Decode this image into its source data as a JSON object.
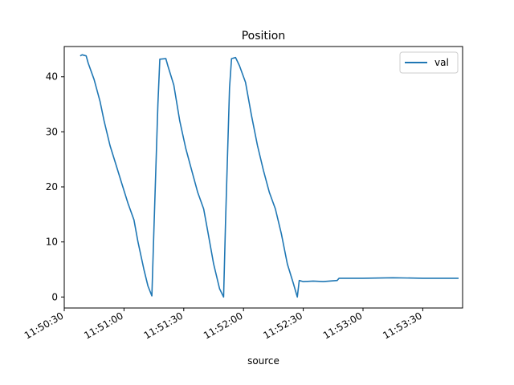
{
  "chart_data": {
    "type": "line",
    "title": "Position",
    "xlabel": "source",
    "ylabel": "",
    "x_type": "time",
    "xlim": [
      "11:50:30",
      "11:53:50"
    ],
    "ylim": [
      -2,
      45.5
    ],
    "x_ticks": [
      "11:50:30",
      "11:51:00",
      "11:51:30",
      "11:52:00",
      "11:52:30",
      "11:53:00",
      "11:53:30"
    ],
    "y_ticks": [
      0,
      10,
      20,
      30,
      40
    ],
    "grid": false,
    "legend_position": "top-right",
    "series": [
      {
        "name": "val",
        "color": "#1f77b4",
        "points": [
          [
            "11:50:38",
            43.8
          ],
          [
            "11:50:39",
            44.0
          ],
          [
            "11:50:41",
            43.8
          ],
          [
            "11:50:42",
            42.5
          ],
          [
            "11:50:45",
            39.5
          ],
          [
            "11:50:48",
            35.5
          ],
          [
            "11:50:50",
            32.0
          ],
          [
            "11:50:53",
            27.5
          ],
          [
            "11:50:56",
            24.0
          ],
          [
            "11:50:59",
            20.5
          ],
          [
            "11:51:02",
            17.0
          ],
          [
            "11:51:05",
            14.0
          ],
          [
            "11:51:07",
            10.0
          ],
          [
            "11:51:10",
            5.0
          ],
          [
            "11:51:12",
            2.0
          ],
          [
            "11:51:14",
            0.2
          ],
          [
            "11:51:15",
            12.0
          ],
          [
            "11:51:17",
            35.0
          ],
          [
            "11:51:18",
            43.2
          ],
          [
            "11:51:21",
            43.3
          ],
          [
            "11:51:22",
            42.0
          ],
          [
            "11:51:25",
            38.5
          ],
          [
            "11:51:28",
            32.0
          ],
          [
            "11:51:31",
            27.0
          ],
          [
            "11:51:34",
            23.0
          ],
          [
            "11:51:37",
            19.0
          ],
          [
            "11:51:40",
            16.0
          ],
          [
            "11:51:42",
            12.0
          ],
          [
            "11:51:45",
            6.0
          ],
          [
            "11:51:48",
            1.5
          ],
          [
            "11:51:50",
            0.0
          ],
          [
            "11:51:51",
            14.0
          ],
          [
            "11:51:53",
            38.0
          ],
          [
            "11:51:54",
            43.3
          ],
          [
            "11:51:56",
            43.5
          ],
          [
            "11:51:58",
            42.0
          ],
          [
            "11:52:01",
            39.0
          ],
          [
            "11:52:04",
            33.0
          ],
          [
            "11:52:07",
            27.5
          ],
          [
            "11:52:10",
            23.0
          ],
          [
            "11:52:13",
            19.0
          ],
          [
            "11:52:16",
            16.0
          ],
          [
            "11:52:19",
            11.5
          ],
          [
            "11:52:22",
            6.0
          ],
          [
            "11:52:25",
            2.5
          ],
          [
            "11:52:27",
            0.0
          ],
          [
            "11:52:28",
            3.0
          ],
          [
            "11:52:30",
            2.8
          ],
          [
            "11:52:35",
            2.9
          ],
          [
            "11:52:40",
            2.8
          ],
          [
            "11:52:47",
            3.0
          ],
          [
            "11:52:48",
            3.4
          ],
          [
            "11:53:00",
            3.4
          ],
          [
            "11:53:15",
            3.5
          ],
          [
            "11:53:30",
            3.4
          ],
          [
            "11:53:48",
            3.4
          ]
        ]
      }
    ]
  }
}
